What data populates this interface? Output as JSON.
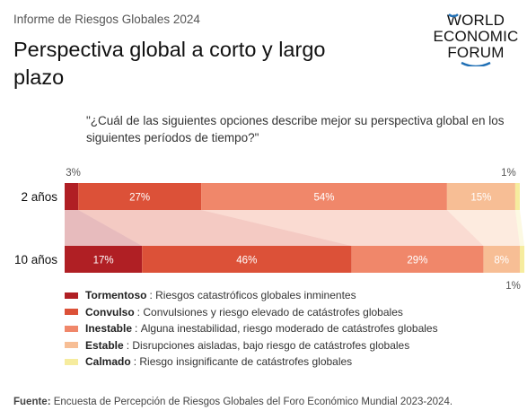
{
  "header": {
    "kicker": "Informe de Riesgos Globales 2024",
    "title": "Perspectiva global a corto y largo plazo",
    "logo_lines": [
      "WORLD",
      "ECONOMIC",
      "FORUM"
    ]
  },
  "question": "\"¿Cuál de las siguientes opciones describe mejor su perspectiva global en los siguientes períodos de tiempo?\"",
  "chart_data": {
    "type": "bar",
    "orientation": "horizontal-stacked-100",
    "categories": [
      "2 años",
      "10 años"
    ],
    "series": [
      {
        "name": "Tormentoso",
        "description": "Riesgos catastróficos globales inminentes",
        "color": "#b01f24",
        "values": [
          3,
          17
        ],
        "labels": [
          "3%",
          "17%"
        ]
      },
      {
        "name": "Convulso",
        "description": "Convulsiones y riesgo elevado de catástrofes globales",
        "color": "#dc5138",
        "values": [
          27,
          46
        ],
        "labels": [
          "27%",
          "46%"
        ]
      },
      {
        "name": "Inestable",
        "description": "Alguna inestabilidad, riesgo moderado de catástrofes globales",
        "color": "#f0876a",
        "values": [
          54,
          29
        ],
        "labels": [
          "54%",
          "29%"
        ]
      },
      {
        "name": "Estable",
        "description": "Disrupciones aisladas, bajo riesgo de catástrofes globales",
        "color": "#f7be95",
        "values": [
          15,
          8
        ],
        "labels": [
          "15%",
          "8%"
        ]
      },
      {
        "name": "Calmado",
        "description": "Riesgo insignificante de catástrofes globales",
        "color": "#f6ec9e",
        "values": [
          1,
          1
        ],
        "labels": [
          "1%",
          "1%"
        ]
      }
    ],
    "xlim": [
      0,
      100
    ],
    "grid": false,
    "legend_placement": "bottom-left"
  },
  "source": {
    "label": "Fuente:",
    "text": "Encuesta de Percepción de Riesgos Globales del Foro Económico Mundial 2023-2024."
  }
}
